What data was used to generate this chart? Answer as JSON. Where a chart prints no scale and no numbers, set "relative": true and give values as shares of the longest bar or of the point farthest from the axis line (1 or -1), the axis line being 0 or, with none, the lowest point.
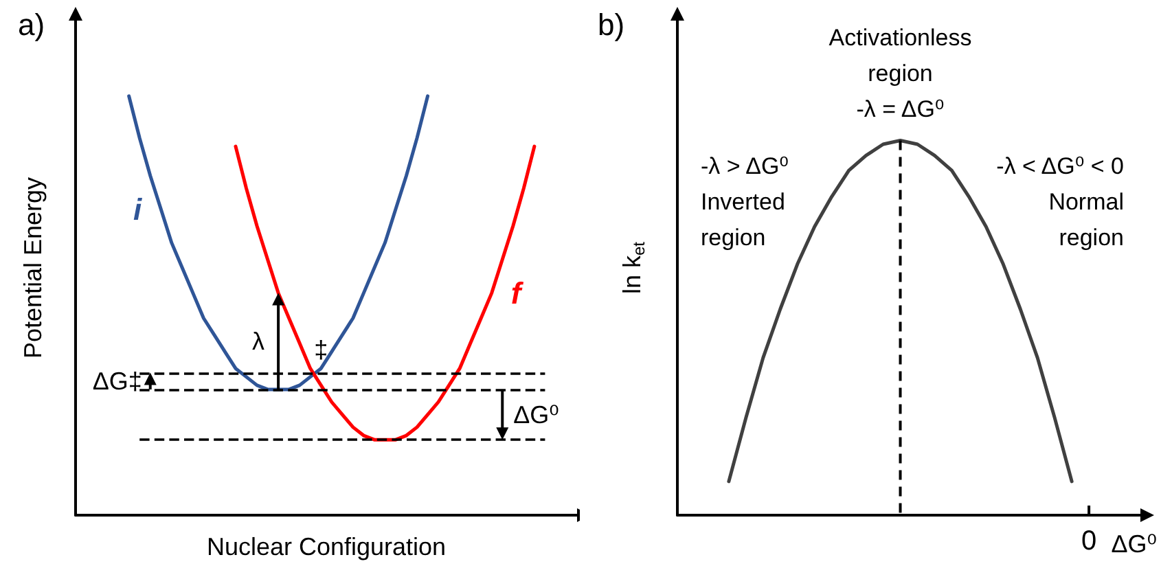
{
  "chart_data": [
    {
      "type": "line",
      "title": "a)",
      "xlabel": "Nuclear Configuration",
      "ylabel": "Potential Energy",
      "relative": true,
      "tick_labels": false,
      "marker": "none",
      "legend": false,
      "categories": [
        null,
        null,
        null,
        null,
        null,
        null,
        null,
        null,
        null,
        null,
        null,
        null,
        null,
        null,
        null,
        null,
        null,
        null,
        null,
        null,
        null,
        null,
        null,
        null,
        null,
        null,
        null,
        null,
        null,
        null,
        null,
        null,
        null,
        null,
        null,
        null,
        null,
        null,
        null,
        null,
        null,
        null,
        null,
        null,
        null,
        null,
        null,
        null
      ],
      "series": [
        {
          "name": "i",
          "color": "#2f5597",
          "values": [
            null,
            null,
            null,
            null,
            null,
            1,
            0.9,
            0.81,
            0.73,
            0.65,
            0.59,
            0.53,
            0.47,
            0.43,
            0.39,
            0.35,
            0.33,
            0.31,
            0.3,
            0.3,
            0.3,
            0.31,
            0.33,
            0.35,
            0.39,
            0.43,
            0.47,
            0.53,
            0.59,
            0.65,
            0.73,
            0.81,
            0.9,
            1,
            null,
            null,
            null,
            null,
            null,
            null,
            null,
            null,
            null,
            null,
            null,
            null,
            null,
            null
          ]
        },
        {
          "name": "f",
          "color": "#ff0000",
          "values": [
            null,
            null,
            null,
            null,
            null,
            null,
            null,
            null,
            null,
            null,
            null,
            null,
            null,
            null,
            null,
            0.88,
            0.78,
            0.69,
            0.61,
            0.53,
            0.47,
            0.41,
            0.35,
            0.31,
            0.27,
            0.24,
            0.21,
            0.19,
            0.18,
            0.18,
            0.18,
            0.19,
            0.21,
            0.24,
            0.27,
            0.31,
            0.35,
            0.41,
            0.47,
            0.53,
            0.61,
            0.69,
            0.78,
            0.88,
            null,
            null,
            null,
            null
          ]
        }
      ],
      "ref_lines": [
        {
          "axis": "y",
          "value": 0.34,
          "color": "#000000",
          "line_style": "dashed"
        },
        {
          "axis": "y",
          "value": 0.3,
          "color": "#000000",
          "line_style": "dashed"
        },
        {
          "axis": "y",
          "value": 0.18,
          "color": "#000000",
          "line_style": "dashed"
        }
      ],
      "annotations": [
        "λ",
        "‡",
        "ΔG‡",
        "ΔG⁰"
      ]
    },
    {
      "type": "line",
      "title": "b)",
      "xlabel": "ΔG⁰",
      "ylabel": "ln k$_{et}$",
      "relative": true,
      "tick_labels": false,
      "marker": "none",
      "legend": false,
      "categories": [
        null,
        null,
        null,
        null,
        null,
        null,
        null,
        null,
        null,
        null,
        null,
        null,
        null,
        null,
        null,
        null,
        null,
        null,
        null,
        null,
        null,
        null,
        null,
        null,
        null,
        null,
        null,
        null
      ],
      "series": [
        {
          "color": "#404040",
          "values": [
            null,
            null,
            null,
            0.09,
            0.26,
            0.42,
            0.55,
            0.67,
            0.77,
            0.85,
            0.92,
            0.96,
            0.99,
            1,
            0.99,
            0.96,
            0.92,
            0.85,
            0.77,
            0.67,
            0.55,
            0.42,
            0.26,
            0.09,
            null,
            null,
            null,
            null
          ]
        }
      ],
      "annotations": [
        {
          "text": "Activationless\nregion\n-λ = ΔG⁰",
          "y": 1
        },
        "-λ > ΔG⁰\nInverted\nregion",
        "-λ < ΔG⁰ < 0\nNormal\nregion",
        "0"
      ]
    }
  ]
}
